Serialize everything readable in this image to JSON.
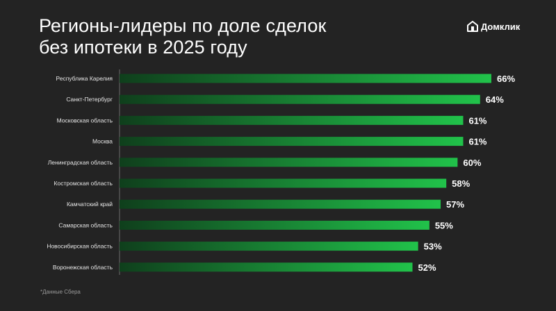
{
  "title_lines": [
    "Регионы-лидеры по доле сделок",
    "без ипотеки в 2025 году"
  ],
  "brand": {
    "name": "Домклик",
    "icon": "domclick-logo-icon"
  },
  "footnote": "*Данные Сбера",
  "colors": {
    "background": "#232323",
    "bar_start": "#0f3f1c",
    "bar_end": "#21c24a",
    "axis": "#6b6b6b"
  },
  "chart_data": {
    "type": "bar",
    "orientation": "horizontal",
    "title": "Регионы-лидеры по доле сделок без ипотеки в 2025 году",
    "categories": [
      "Республика Карелия",
      "Санкт-Петербург",
      "Московская область",
      "Москва",
      "Ленинградская область",
      "Костромская область",
      "Камчатский край",
      "Самарская область",
      "Новосибирская область",
      "Воронежская область"
    ],
    "values": [
      66,
      64,
      61,
      61,
      60,
      58,
      57,
      55,
      53,
      52
    ],
    "value_labels": [
      "66%",
      "64%",
      "61%",
      "61%",
      "60%",
      "58%",
      "57%",
      "55%",
      "53%",
      "52%"
    ],
    "unit": "%",
    "xlim": [
      0,
      66
    ],
    "grid": false,
    "legend": "none"
  }
}
